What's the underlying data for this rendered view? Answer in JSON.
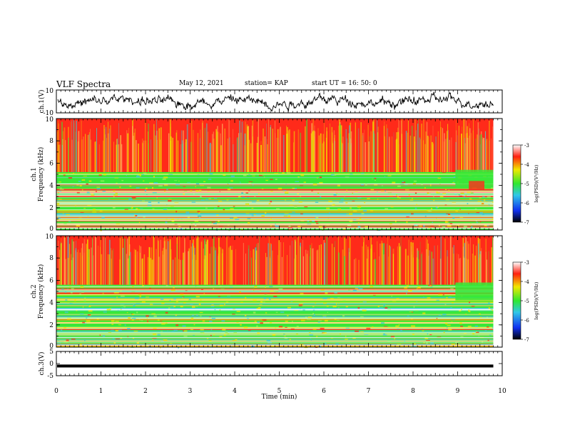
{
  "header": {
    "title": "VLF Spectra",
    "date": "May 12, 2021",
    "station": "station= KAP",
    "start_ut": "start UT =  16: 50: 0"
  },
  "colors": {
    "red": "#ff2a1a",
    "yellow": "#f0e400",
    "green": "#38e838",
    "cyan": "#40c8d8",
    "blue": "#1838e8",
    "trace": "#000000"
  },
  "chart_data": [
    {
      "type": "line",
      "id": "ch1-waveform",
      "ylabel": "ch.1(V)",
      "ylim": [
        -10,
        10
      ],
      "yticks": [
        "10",
        "-10"
      ],
      "xlim": [
        0,
        10
      ],
      "description_free": true
    },
    {
      "type": "heatmap",
      "id": "ch1-spectrogram",
      "ylabel": "ch.1\nFrequency (kHz)",
      "ylabel_line1": "ch.1",
      "ylabel_line2": "Frequency (kHz)",
      "ylim": [
        0,
        10
      ],
      "yticks": [
        "0",
        "2",
        "4",
        "6",
        "8",
        "10"
      ],
      "xlim": [
        0,
        10
      ],
      "colorbar": {
        "label": "log(PSD)(V²/Hz)",
        "range": [
          -7,
          -3
        ],
        "ticks": [
          "-3",
          "-4",
          "-5",
          "-6",
          "-7"
        ]
      }
    },
    {
      "type": "heatmap",
      "id": "ch2-spectrogram",
      "ylabel_line1": "ch.2",
      "ylabel_line2": "Frequency (kHz)",
      "ylim": [
        0,
        10
      ],
      "yticks": [
        "0",
        "2",
        "4",
        "6",
        "8",
        "10"
      ],
      "xlim": [
        0,
        10
      ],
      "colorbar": {
        "label": "log(PSD)(V²/Hz)",
        "range": [
          -7,
          -3
        ],
        "ticks": [
          "-3",
          "-4",
          "-5",
          "-6",
          "-7"
        ]
      }
    },
    {
      "type": "line",
      "id": "ch3-waveform",
      "ylabel": "ch.3(V)",
      "ylim": [
        -5,
        5
      ],
      "yticks": [
        "5",
        "0",
        "-5"
      ],
      "xlim": [
        0,
        10
      ],
      "xlabel": "Time (min)",
      "xticks": [
        "0",
        "1",
        "2",
        "3",
        "4",
        "5",
        "6",
        "7",
        "8",
        "9",
        "10"
      ]
    }
  ]
}
